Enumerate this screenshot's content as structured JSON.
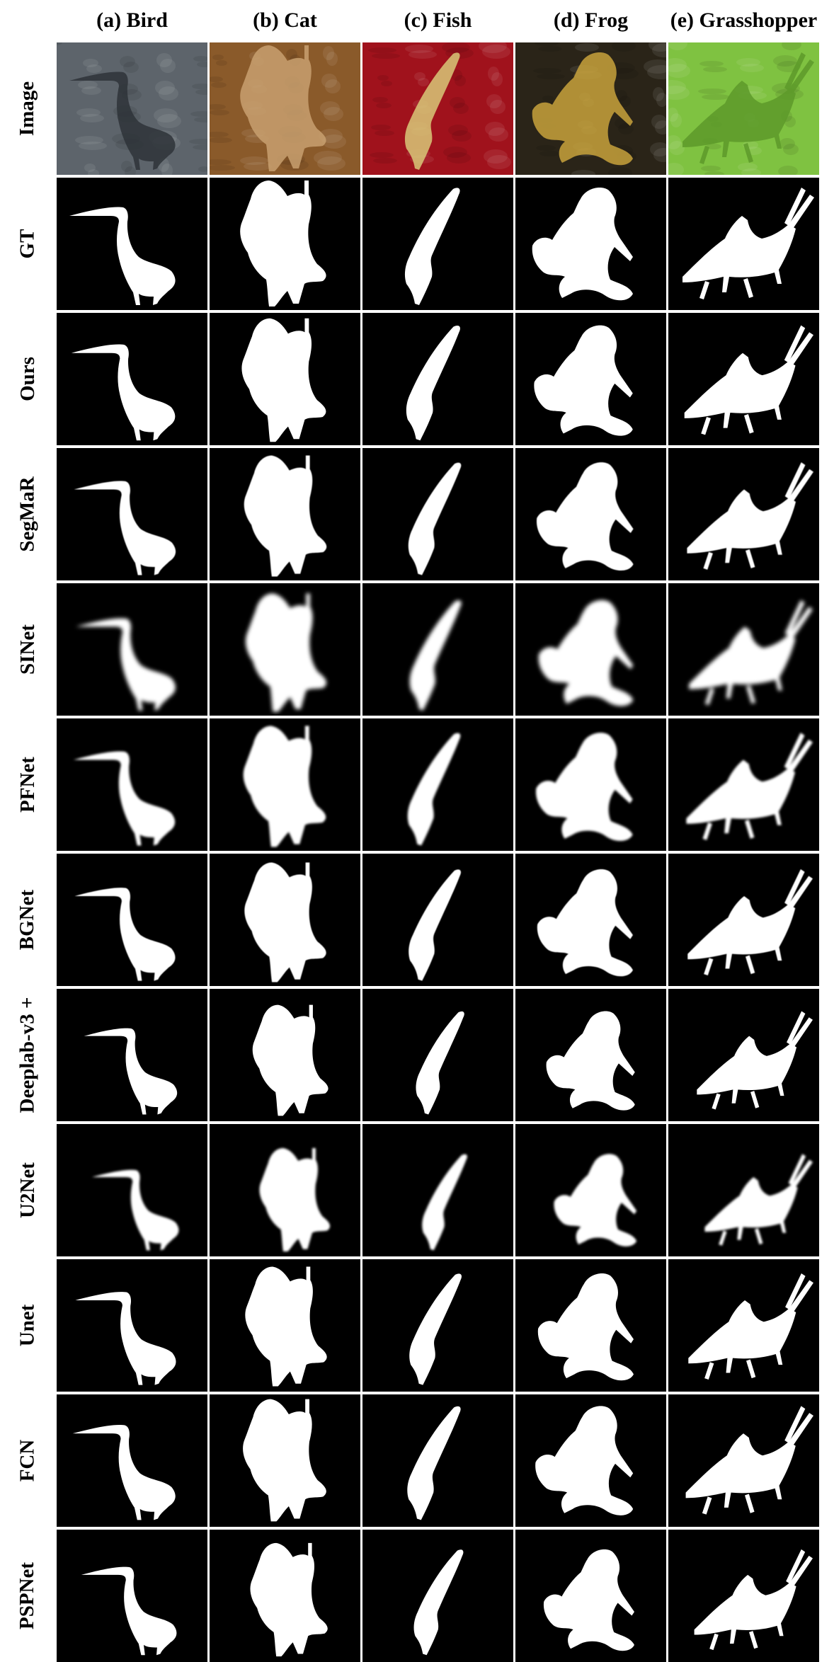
{
  "columns": [
    {
      "id": "bird",
      "label": "(a) Bird"
    },
    {
      "id": "cat",
      "label": "(b) Cat"
    },
    {
      "id": "fish",
      "label": "(c) Fish"
    },
    {
      "id": "frog",
      "label": "(d) Frog"
    },
    {
      "id": "grasshopper",
      "label": "(e) Grasshopper"
    }
  ],
  "rows": [
    {
      "label": "Image",
      "kind": "photo"
    },
    {
      "label": "GT",
      "kind": "mask"
    },
    {
      "label": "Ours",
      "kind": "mask"
    },
    {
      "label": "SegMaR",
      "kind": "mask"
    },
    {
      "label": "SINet",
      "kind": "mask"
    },
    {
      "label": "PFNet",
      "kind": "mask"
    },
    {
      "label": "BGNet",
      "kind": "mask"
    },
    {
      "label": "Deeplab-v3 +",
      "kind": "mask"
    },
    {
      "label": "U2Net",
      "kind": "mask"
    },
    {
      "label": "Unet",
      "kind": "mask"
    },
    {
      "label": "FCN",
      "kind": "mask"
    },
    {
      "label": "PSPNet",
      "kind": "mask"
    }
  ],
  "photo_colors": {
    "bird": {
      "bg": "#5d646b",
      "fg": "#2e3338"
    },
    "cat": {
      "bg": "#8a5a2a",
      "fg": "#c8a070"
    },
    "fish": {
      "bg": "#a0121c",
      "fg": "#d8c878"
    },
    "frog": {
      "bg": "#2a2418",
      "fg": "#c8a23c"
    },
    "grasshopper": {
      "bg": "#7fc241",
      "fg": "#5d9a2a"
    }
  },
  "mask_colors": {
    "background": "#000000",
    "foreground": "#ffffff"
  }
}
